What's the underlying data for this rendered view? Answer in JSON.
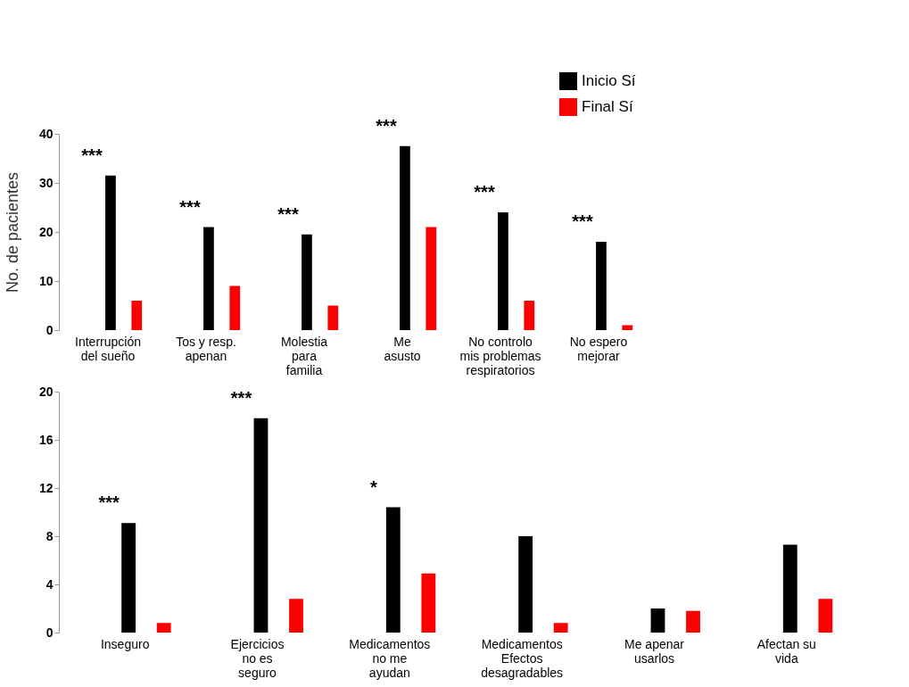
{
  "chart_data": [
    {
      "type": "bar",
      "ylabel": "No. de pacientes",
      "categories": [
        "Interrupción\ndel sueño",
        "Tos y resp.\napenan",
        "Molestia\npara\nfamilia",
        "Me\nasusto",
        "No controlo\nmis problemas\nrespiratorios",
        "No espero\nmejorar"
      ],
      "series": [
        {
          "name": "Inicio Sí",
          "color": "#000000",
          "values": [
            31.5,
            21,
            19.5,
            37.5,
            24,
            18
          ]
        },
        {
          "name": "Final Sí",
          "color": "#ff0000",
          "values": [
            6,
            9,
            5,
            21,
            6,
            1
          ]
        }
      ],
      "ylim": [
        0,
        40
      ],
      "yticks": [
        0,
        10,
        20,
        30,
        40
      ],
      "grid": false,
      "legend": "top right",
      "annotations": [
        "***",
        "***",
        "***",
        "***",
        "***",
        "***"
      ]
    },
    {
      "type": "bar",
      "categories": [
        "Inseguro",
        "Ejercicios\nno es\nseguro",
        "Medicamentos\nno me\nayudan",
        "Medicamentos\nEfectos\ndesagradables",
        "Me apenar\nusarlos",
        "Afectan  su\nvida"
      ],
      "series": [
        {
          "color": "#000000",
          "values": [
            9.1,
            17.8,
            10.4,
            8,
            2,
            7.3
          ]
        },
        {
          "color": "#ff0000",
          "values": [
            0.8,
            2.8,
            4.9,
            0.8,
            1.8,
            2.8
          ]
        }
      ],
      "ylim": [
        0,
        20
      ],
      "yticks": [
        0,
        4,
        8,
        12,
        16,
        20
      ],
      "grid": false,
      "annotations": [
        "***",
        "***",
        "*"
      ]
    }
  ]
}
